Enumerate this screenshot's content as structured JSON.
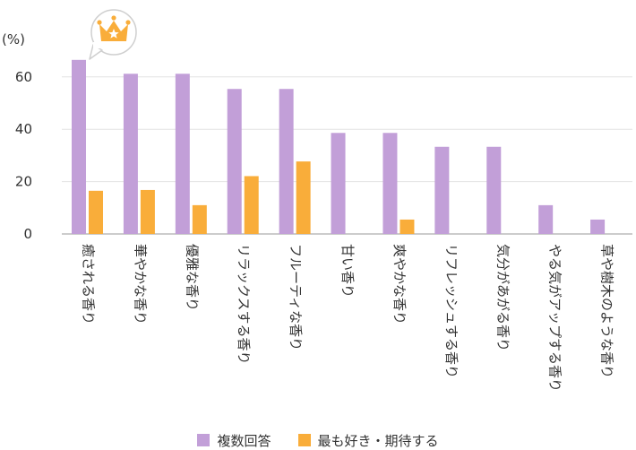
{
  "chart_data": {
    "type": "bar",
    "unit_label": "(%)",
    "categories": [
      "癒される香り",
      "華やかな香り",
      "優雅な香り",
      "リラックスする香り",
      "フルーティな香り",
      "甘い香り",
      "爽やかな香り",
      "リフレッシュする香り",
      "気分があがる香り",
      "やる気がアップする香り",
      "草や樹木のような香り"
    ],
    "series": [
      {
        "name": "複数回答",
        "color": "#c29fd8",
        "values": [
          66.5,
          61.2,
          61.2,
          55.4,
          55.4,
          38.6,
          38.6,
          33.3,
          33.3,
          11.0,
          5.5
        ]
      },
      {
        "name": "最も好き・期待する",
        "color": "#f9ad3a",
        "values": [
          16.5,
          16.8,
          11.0,
          22.1,
          27.7,
          null,
          5.5,
          null,
          null,
          null,
          null
        ]
      }
    ],
    "yticks": [
      0,
      20,
      40,
      60
    ],
    "ylim": [
      0,
      70
    ],
    "grid": true,
    "legend_position": "bottom",
    "highlight_icon": "crown-icon"
  }
}
